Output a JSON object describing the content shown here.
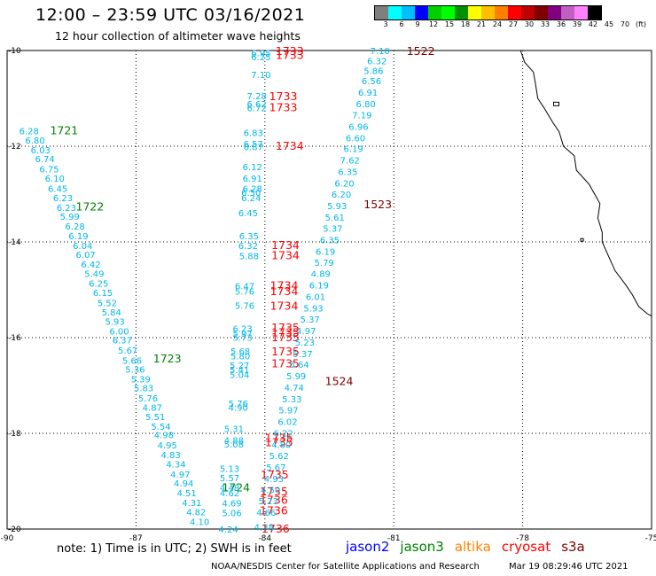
{
  "header": {
    "title": "12:00 – 23:59 UTC 03/16/2021",
    "subtitle": "12 hour collection of altimeter wave heights"
  },
  "legend": {
    "colors": [
      "#7f7f7f",
      "#00ffff",
      "#00bfff",
      "#0000ff",
      "#00d000",
      "#00ff00",
      "#009000",
      "#ffff00",
      "#ffbf00",
      "#ff8000",
      "#ff0000",
      "#c00000",
      "#800000",
      "#800080",
      "#c060c0",
      "#ff80ff",
      "#000000"
    ],
    "labels": [
      "3",
      "6",
      "9",
      "12",
      "15",
      "18",
      "21",
      "24",
      "27",
      "30",
      "33",
      "36",
      "39",
      "42",
      "45",
      "70",
      "(ft)"
    ]
  },
  "footer": {
    "note": "note:  1) Time is in UTC;  2) SWH is in feet",
    "satellites": [
      {
        "name": "jason2",
        "color": "#0000ff"
      },
      {
        "name": "jason3",
        "color": "#008000"
      },
      {
        "name": "altika",
        "color": "#ff8000"
      },
      {
        "name": "cryosat",
        "color": "#ff0000"
      },
      {
        "name": "s3a",
        "color": "#800000"
      }
    ],
    "credit": "NOAA/NESDIS Center for Satellite Applications and Research",
    "timestamp": "Mar 19 08:29:46 UTC 2021"
  },
  "chart_data": {
    "type": "scatter",
    "xlim": [
      -90,
      -75
    ],
    "ylim": [
      -20,
      -10
    ],
    "xticks": [
      -90,
      -87,
      -84,
      -81,
      -78,
      -75
    ],
    "yticks": [
      -10,
      -12,
      -14,
      -16,
      -18,
      -20
    ],
    "grid": true,
    "value_color": "#00b8e8",
    "tracks": [
      {
        "satellite": "jason3",
        "color": "#008000",
        "labels": [
          {
            "text": "1721",
            "lon": -89.0,
            "lat": -11.66
          },
          {
            "text": "1722",
            "lon": -88.4,
            "lat": -13.25
          },
          {
            "text": "1723",
            "lon": -86.6,
            "lat": -16.43
          },
          {
            "text": "1724",
            "lon": -85.0,
            "lat": -19.12
          }
        ],
        "values": [
          {
            "v": "6.28",
            "lon": -89.72,
            "lat": -11.68
          },
          {
            "v": "6.80",
            "lon": -89.58,
            "lat": -11.87
          },
          {
            "v": "6.03",
            "lon": -89.45,
            "lat": -12.07
          },
          {
            "v": "6.74",
            "lon": -89.35,
            "lat": -12.26
          },
          {
            "v": "6.75",
            "lon": -89.25,
            "lat": -12.47
          },
          {
            "v": "6.10",
            "lon": -89.12,
            "lat": -12.67
          },
          {
            "v": "6.45",
            "lon": -89.05,
            "lat": -12.88
          },
          {
            "v": "6.23",
            "lon": -88.93,
            "lat": -13.07
          },
          {
            "v": "6.23",
            "lon": -88.85,
            "lat": -13.28
          },
          {
            "v": "5.99",
            "lon": -88.77,
            "lat": -13.46
          },
          {
            "v": "6.28",
            "lon": -88.65,
            "lat": -13.67
          },
          {
            "v": "6.19",
            "lon": -88.57,
            "lat": -13.87
          },
          {
            "v": "6.04",
            "lon": -88.47,
            "lat": -14.07
          },
          {
            "v": "6.07",
            "lon": -88.4,
            "lat": -14.26
          },
          {
            "v": "6.42",
            "lon": -88.28,
            "lat": -14.46
          },
          {
            "v": "5.49",
            "lon": -88.2,
            "lat": -14.66
          },
          {
            "v": "6.25",
            "lon": -88.1,
            "lat": -14.86
          },
          {
            "v": "6.15",
            "lon": -88.0,
            "lat": -15.06
          },
          {
            "v": "5.52",
            "lon": -87.9,
            "lat": -15.27
          },
          {
            "v": "5.84",
            "lon": -87.8,
            "lat": -15.46
          },
          {
            "v": "5.93",
            "lon": -87.72,
            "lat": -15.66
          },
          {
            "v": "6.00",
            "lon": -87.62,
            "lat": -15.86
          },
          {
            "v": "6.37",
            "lon": -87.55,
            "lat": -16.05
          },
          {
            "v": "5.67",
            "lon": -87.42,
            "lat": -16.26
          },
          {
            "v": "5.66",
            "lon": -87.32,
            "lat": -16.47
          },
          {
            "v": "5.36",
            "lon": -87.25,
            "lat": -16.66
          },
          {
            "v": "5.39",
            "lon": -87.12,
            "lat": -16.86
          },
          {
            "v": "5.83",
            "lon": -87.05,
            "lat": -17.05
          },
          {
            "v": "5.76",
            "lon": -86.95,
            "lat": -17.26
          },
          {
            "v": "4.87",
            "lon": -86.85,
            "lat": -17.45
          },
          {
            "v": "5.51",
            "lon": -86.78,
            "lat": -17.65
          },
          {
            "v": "5.54",
            "lon": -86.65,
            "lat": -17.85
          },
          {
            "v": "4.98",
            "lon": -86.58,
            "lat": -18.03
          },
          {
            "v": "4.95",
            "lon": -86.5,
            "lat": -18.24
          },
          {
            "v": "4.83",
            "lon": -86.42,
            "lat": -18.44
          },
          {
            "v": "4.34",
            "lon": -86.3,
            "lat": -18.64
          },
          {
            "v": "4.97",
            "lon": -86.2,
            "lat": -18.85
          },
          {
            "v": "4.94",
            "lon": -86.12,
            "lat": -19.04
          },
          {
            "v": "4.51",
            "lon": -86.05,
            "lat": -19.24
          },
          {
            "v": "4.31",
            "lon": -85.93,
            "lat": -19.44
          },
          {
            "v": "4.82",
            "lon": -85.83,
            "lat": -19.64
          },
          {
            "v": "4.10",
            "lon": -85.75,
            "lat": -19.84
          }
        ]
      },
      {
        "satellite": "cryosat",
        "color": "#ff0000",
        "labels": [
          {
            "text": "1733",
            "lon": -83.75,
            "lat": -10.0
          },
          {
            "text": "1733",
            "lon": -83.75,
            "lat": -10.08
          },
          {
            "text": "1733",
            "lon": -83.9,
            "lat": -10.94
          },
          {
            "text": "1733",
            "lon": -83.9,
            "lat": -11.18
          },
          {
            "text": "1734",
            "lon": -83.75,
            "lat": -11.98
          },
          {
            "text": "1734",
            "lon": -83.85,
            "lat": -14.06
          },
          {
            "text": "1734",
            "lon": -83.85,
            "lat": -14.27
          },
          {
            "text": "1734",
            "lon": -83.88,
            "lat": -14.9
          },
          {
            "text": "1734",
            "lon": -83.88,
            "lat": -15.02
          },
          {
            "text": "1734",
            "lon": -83.88,
            "lat": -15.32
          },
          {
            "text": "1735",
            "lon": -83.85,
            "lat": -15.78
          },
          {
            "text": "1735",
            "lon": -83.85,
            "lat": -15.88
          },
          {
            "text": "1735",
            "lon": -83.85,
            "lat": -15.98
          },
          {
            "text": "1735",
            "lon": -83.85,
            "lat": -16.28
          },
          {
            "text": "1735",
            "lon": -83.85,
            "lat": -16.53
          },
          {
            "text": "1735",
            "lon": -84.0,
            "lat": -18.08
          },
          {
            "text": "1735",
            "lon": -84.0,
            "lat": -18.18
          },
          {
            "text": "1735",
            "lon": -84.1,
            "lat": -18.85
          },
          {
            "text": "1735",
            "lon": -84.12,
            "lat": -19.2
          },
          {
            "text": "1736",
            "lon": -84.12,
            "lat": -19.38
          },
          {
            "text": "1736",
            "lon": -84.12,
            "lat": -19.6
          },
          {
            "text": "1736",
            "lon": -84.08,
            "lat": -19.98
          }
        ],
        "values": [
          {
            "v": "6.95",
            "lon": -84.32,
            "lat": -10.05
          },
          {
            "v": "6.25",
            "lon": -84.32,
            "lat": -10.13
          },
          {
            "v": "7.10",
            "lon": -84.32,
            "lat": -10.5
          },
          {
            "v": "7.28",
            "lon": -84.42,
            "lat": -10.94
          },
          {
            "v": "6.62",
            "lon": -84.42,
            "lat": -11.11
          },
          {
            "v": "6.72",
            "lon": -84.42,
            "lat": -11.19
          },
          {
            "v": "6.83",
            "lon": -84.5,
            "lat": -11.71
          },
          {
            "v": "6.57",
            "lon": -84.5,
            "lat": -11.94
          },
          {
            "v": "6.87",
            "lon": -84.5,
            "lat": -12.01
          },
          {
            "v": "6.12",
            "lon": -84.52,
            "lat": -12.43
          },
          {
            "v": "6.91",
            "lon": -84.52,
            "lat": -12.67
          },
          {
            "v": "6.28",
            "lon": -84.52,
            "lat": -12.88
          },
          {
            "v": "6.50",
            "lon": -84.55,
            "lat": -12.96
          },
          {
            "v": "6.24",
            "lon": -84.55,
            "lat": -13.07
          },
          {
            "v": "6.45",
            "lon": -84.62,
            "lat": -13.39
          },
          {
            "v": "6.35",
            "lon": -84.6,
            "lat": -13.87
          },
          {
            "v": "6.32",
            "lon": -84.62,
            "lat": -14.07
          },
          {
            "v": "5.88",
            "lon": -84.6,
            "lat": -14.29
          },
          {
            "v": "6.47",
            "lon": -84.7,
            "lat": -14.92
          },
          {
            "v": "5.76",
            "lon": -84.7,
            "lat": -15.03
          },
          {
            "v": "5.76",
            "lon": -84.7,
            "lat": -15.32
          },
          {
            "v": "6.23",
            "lon": -84.75,
            "lat": -15.81
          },
          {
            "v": "5.97",
            "lon": -84.75,
            "lat": -15.91
          },
          {
            "v": "5.73",
            "lon": -84.75,
            "lat": -15.99
          },
          {
            "v": "5.68",
            "lon": -84.8,
            "lat": -16.28
          },
          {
            "v": "5.80",
            "lon": -84.8,
            "lat": -16.38
          },
          {
            "v": "5.27",
            "lon": -84.82,
            "lat": -16.57
          },
          {
            "v": "5.41",
            "lon": -84.82,
            "lat": -16.67
          },
          {
            "v": "5.04",
            "lon": -84.82,
            "lat": -16.77
          },
          {
            "v": "5.76",
            "lon": -84.85,
            "lat": -17.37
          },
          {
            "v": "4.90",
            "lon": -84.85,
            "lat": -17.45
          },
          {
            "v": "5.31",
            "lon": -84.95,
            "lat": -17.9
          },
          {
            "v": "4.88",
            "lon": -84.95,
            "lat": -18.14
          },
          {
            "v": "5.08",
            "lon": -84.95,
            "lat": -18.22
          },
          {
            "v": "5.13",
            "lon": -85.05,
            "lat": -18.73
          },
          {
            "v": "5.57",
            "lon": -85.05,
            "lat": -18.93
          },
          {
            "v": "4.48",
            "lon": -85.05,
            "lat": -19.13
          },
          {
            "v": "4.62",
            "lon": -85.05,
            "lat": -19.24
          },
          {
            "v": "4.69",
            "lon": -85.0,
            "lat": -19.45
          },
          {
            "v": "5.06",
            "lon": -85.0,
            "lat": -19.66
          },
          {
            "v": "4.24",
            "lon": -85.08,
            "lat": -20.0
          }
        ]
      },
      {
        "satellite": "s3a",
        "color": "#800000",
        "labels": [
          {
            "text": "1522",
            "lon": -80.7,
            "lat": -10.0
          },
          {
            "text": "1523",
            "lon": -81.7,
            "lat": -13.2
          },
          {
            "text": "1524",
            "lon": -82.6,
            "lat": -16.9
          }
        ],
        "values": [
          {
            "v": "7.10",
            "lon": -81.55,
            "lat": -10.0
          },
          {
            "v": "6.32",
            "lon": -81.62,
            "lat": -10.21
          },
          {
            "v": "5.86",
            "lon": -81.7,
            "lat": -10.42
          },
          {
            "v": "6.56",
            "lon": -81.75,
            "lat": -10.63
          },
          {
            "v": "6.91",
            "lon": -81.83,
            "lat": -10.87
          },
          {
            "v": "6.80",
            "lon": -81.88,
            "lat": -11.11
          },
          {
            "v": "7.19",
            "lon": -81.97,
            "lat": -11.34
          },
          {
            "v": "6.96",
            "lon": -82.05,
            "lat": -11.58
          },
          {
            "v": "6.60",
            "lon": -82.12,
            "lat": -11.82
          },
          {
            "v": "6.19",
            "lon": -82.17,
            "lat": -12.05
          },
          {
            "v": "7.62",
            "lon": -82.25,
            "lat": -12.29
          },
          {
            "v": "6.35",
            "lon": -82.3,
            "lat": -12.53
          },
          {
            "v": "6.20",
            "lon": -82.38,
            "lat": -12.77
          },
          {
            "v": "6.20",
            "lon": -82.45,
            "lat": -13.0
          },
          {
            "v": "5.93",
            "lon": -82.55,
            "lat": -13.24
          },
          {
            "v": "5.61",
            "lon": -82.6,
            "lat": -13.48
          },
          {
            "v": "5.37",
            "lon": -82.65,
            "lat": -13.71
          },
          {
            "v": "6.35",
            "lon": -82.72,
            "lat": -13.95
          },
          {
            "v": "6.19",
            "lon": -82.82,
            "lat": -14.19
          },
          {
            "v": "5.79",
            "lon": -82.85,
            "lat": -14.43
          },
          {
            "v": "4.89",
            "lon": -82.93,
            "lat": -14.66
          },
          {
            "v": "6.19",
            "lon": -82.97,
            "lat": -14.9
          },
          {
            "v": "6.01",
            "lon": -83.05,
            "lat": -15.14
          },
          {
            "v": "5.93",
            "lon": -83.1,
            "lat": -15.38
          },
          {
            "v": "5.37",
            "lon": -83.18,
            "lat": -15.61
          },
          {
            "v": "4.97",
            "lon": -83.27,
            "lat": -15.85
          },
          {
            "v": "5.23",
            "lon": -83.3,
            "lat": -16.09
          },
          {
            "v": "5.37",
            "lon": -83.35,
            "lat": -16.33
          },
          {
            "v": "5.64",
            "lon": -83.43,
            "lat": -16.56
          },
          {
            "v": "5.99",
            "lon": -83.5,
            "lat": -16.8
          },
          {
            "v": "4.74",
            "lon": -83.55,
            "lat": -17.04
          },
          {
            "v": "5.33",
            "lon": -83.6,
            "lat": -17.28
          },
          {
            "v": "5.97",
            "lon": -83.68,
            "lat": -17.51
          },
          {
            "v": "6.02",
            "lon": -83.7,
            "lat": -17.75
          },
          {
            "v": "6.22",
            "lon": -83.8,
            "lat": -17.99
          },
          {
            "v": "4.80",
            "lon": -83.85,
            "lat": -18.23
          },
          {
            "v": "5.62",
            "lon": -83.9,
            "lat": -18.46
          },
          {
            "v": "5.67",
            "lon": -83.97,
            "lat": -18.7
          },
          {
            "v": "4.93",
            "lon": -84.02,
            "lat": -18.94
          },
          {
            "v": "4.50",
            "lon": -84.1,
            "lat": -19.18
          },
          {
            "v": "5.23",
            "lon": -84.15,
            "lat": -19.41
          },
          {
            "v": "4.66",
            "lon": -84.2,
            "lat": -19.65
          },
          {
            "v": "4.38",
            "lon": -84.25,
            "lat": -19.95
          }
        ]
      }
    ],
    "coastline": [
      [
        -78.05,
        -10.0
      ],
      [
        -77.95,
        -10.25
      ],
      [
        -77.75,
        -10.45
      ],
      [
        -77.7,
        -10.7
      ],
      [
        -77.65,
        -11.0
      ],
      [
        -77.5,
        -11.2
      ],
      [
        -77.3,
        -11.5
      ],
      [
        -77.15,
        -11.7
      ],
      [
        -77.05,
        -12.0
      ],
      [
        -76.8,
        -12.2
      ],
      [
        -76.75,
        -12.5
      ],
      [
        -76.45,
        -12.8
      ],
      [
        -76.2,
        -13.2
      ],
      [
        -76.25,
        -13.5
      ],
      [
        -76.15,
        -13.8
      ],
      [
        -76.15,
        -14.0
      ],
      [
        -76.0,
        -14.3
      ],
      [
        -75.85,
        -14.6
      ],
      [
        -75.6,
        -14.9
      ],
      [
        -75.45,
        -15.1
      ],
      [
        -75.3,
        -15.35
      ],
      [
        -75.1,
        -15.5
      ],
      [
        -75.0,
        -15.55
      ]
    ]
  }
}
